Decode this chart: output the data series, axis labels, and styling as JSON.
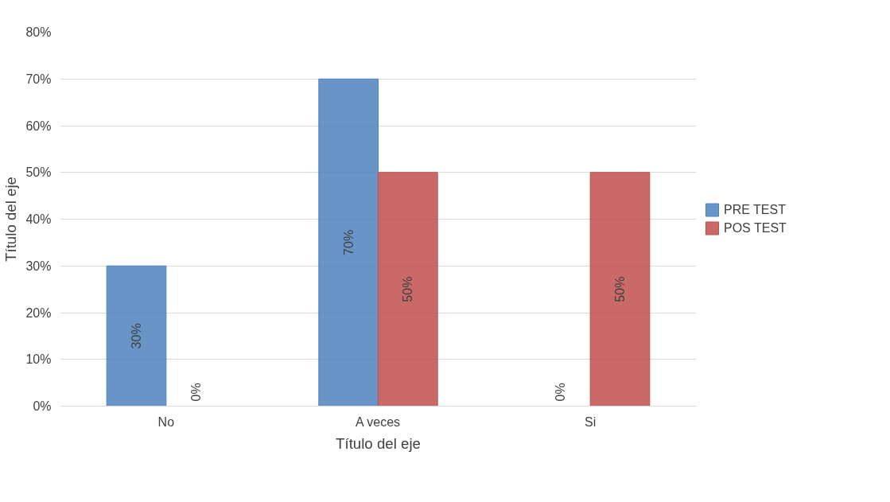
{
  "chart_data": {
    "type": "bar",
    "xlabel": "Título del eje",
    "ylabel": "Título del eje",
    "categories": [
      "No",
      "A veces",
      "Si"
    ],
    "series": [
      {
        "name": "PRE TEST",
        "color": "#4f81bd",
        "values": [
          30,
          70,
          0
        ],
        "value_labels": [
          "30%",
          "70%",
          "0%"
        ]
      },
      {
        "name": "POS TEST",
        "color": "#c0504d",
        "values": [
          0,
          50,
          50
        ],
        "value_labels": [
          "0%",
          "50%",
          "50%"
        ]
      }
    ],
    "ylim": [
      0,
      80
    ],
    "yticks": [
      {
        "value": 0,
        "label": "0%"
      },
      {
        "value": 10,
        "label": "10%"
      },
      {
        "value": 20,
        "label": "20%"
      },
      {
        "value": 30,
        "label": "30%"
      },
      {
        "value": 40,
        "label": "40%"
      },
      {
        "value": 50,
        "label": "50%"
      },
      {
        "value": 60,
        "label": "60%"
      },
      {
        "value": 70,
        "label": "70%"
      },
      {
        "value": 80,
        "label": "80%"
      }
    ],
    "grid": "y",
    "legend": "right"
  }
}
